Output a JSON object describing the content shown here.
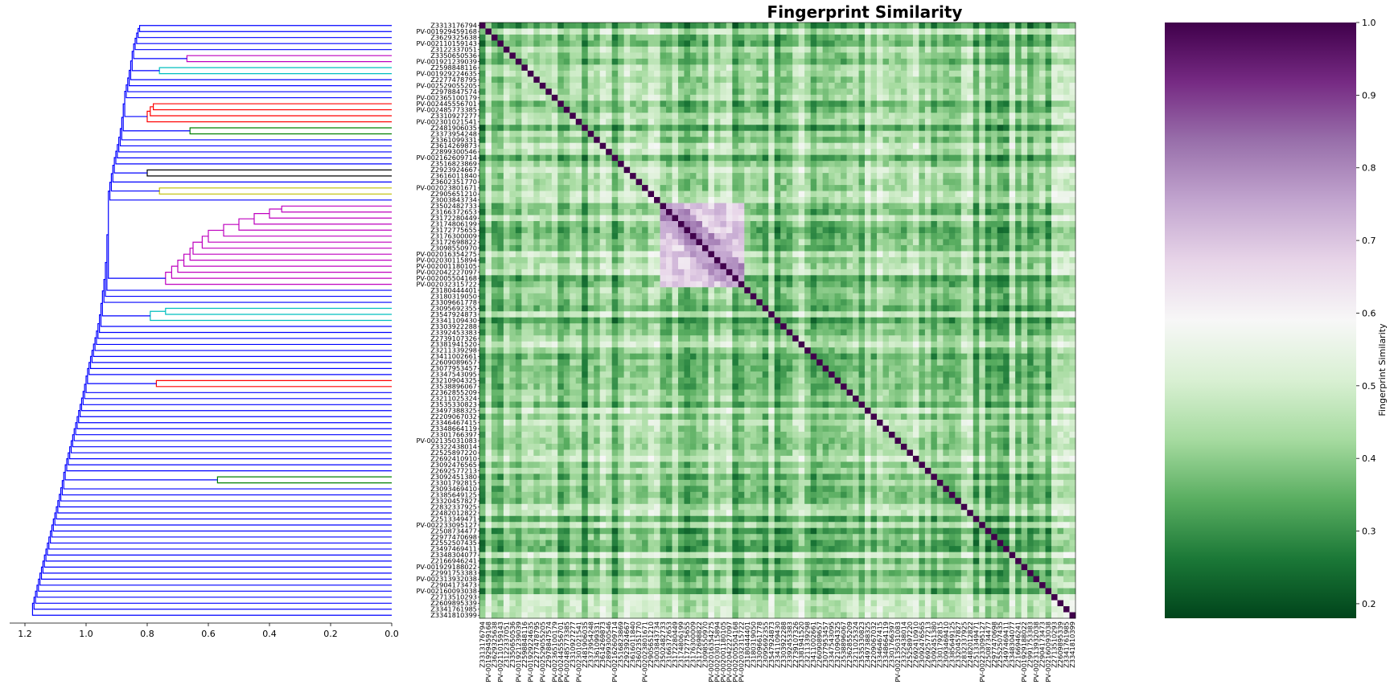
{
  "chart_data": [
    {
      "type": "dendrogram",
      "orientation": "left",
      "xlim": [
        1.25,
        0.0
      ],
      "xticks": [
        "1.2",
        "1.0",
        "0.8",
        "0.6",
        "0.4",
        "0.2",
        "0.0"
      ],
      "cluster_colors": {
        "magenta": "#bf00bf",
        "cyan": "#00bfbf",
        "red": "#ff0000",
        "green": "#008000",
        "black": "#000000",
        "yellow": "#bfbf00",
        "above_threshold": "#0000ff"
      }
    },
    {
      "type": "heatmap",
      "title": "Fingerprint Similarity",
      "labels": [
        "Z3313176794",
        "PV-001929459168",
        "Z3629325638",
        "PV-002110159143",
        "Z3122337051",
        "Z3350650536",
        "PV-001921239039",
        "Z2598848116",
        "PV-001929224635",
        "Z2277478795",
        "PV-002529055205",
        "Z2978847574",
        "PV-002365100179",
        "PV-002445556701",
        "PV-002485773385",
        "Z3310927277",
        "PV-002301021541",
        "Z2481906035",
        "Z3373954248",
        "Z3361099331",
        "Z3614269873",
        "Z2899300546",
        "PV-002162609714",
        "Z3516823869",
        "Z2923924667",
        "Z3616011840",
        "Z3602351770",
        "PV-002023801671",
        "Z2905651210",
        "Z3003843734",
        "Z3502482733",
        "Z3166372653",
        "Z3172280449",
        "Z3174806199",
        "Z3172775655",
        "Z3176300009",
        "Z3172698822",
        "Z3098550970",
        "PV-002016354275",
        "PV-002030115894",
        "PV-002001180105",
        "PV-002042227097",
        "PV-002005504168",
        "PV-002032315722",
        "Z3180444401",
        "Z3180319050",
        "Z3309661778",
        "Z3095692355",
        "Z3547924873",
        "Z3341109430",
        "Z3303922288",
        "Z3392453383",
        "Z2739107326",
        "Z3381941520",
        "Z3211339298",
        "Z3411002661",
        "Z2609089657",
        "Z3077953457",
        "Z3347543095",
        "Z3210904325",
        "Z3538896067",
        "Z2362855209",
        "Z3211025324",
        "Z3535330823",
        "Z3497388325",
        "Z2209067032",
        "Z3346467415",
        "Z3348664119",
        "Z3301766397",
        "PV-002135031083",
        "Z3322438014",
        "Z2525897220",
        "Z2692410910",
        "Z3092476565",
        "Z2692577213",
        "Z3092451380",
        "Z3301792815",
        "Z3093469410",
        "Z3385649125",
        "Z3320457827",
        "Z2832337925",
        "Z2482012822",
        "Z2513349471",
        "PV-002233095127",
        "Z2508734477",
        "Z2977470698",
        "Z2552507435",
        "Z3497469411",
        "Z3348304077",
        "Z2166946241",
        "PV-001929188022",
        "Z2991753383",
        "PV-002313932038",
        "Z2904173473",
        "PV-002160093038",
        "Z2713510293",
        "Z2609895339",
        "Z3341761985",
        "Z3341810399"
      ],
      "diagonal_value": 1.0,
      "vmin": 0.18,
      "vmax": 1.0,
      "colormap": "PRGn",
      "highlight_block_rows": [
        30,
        43
      ],
      "highlight_block_value": 0.62,
      "background_value": 0.4
    },
    {
      "type": "colorbar",
      "label": "Fingerprint Similarity",
      "ticks": [
        "1.0",
        "0.9",
        "0.8",
        "0.7",
        "0.6",
        "0.5",
        "0.4",
        "0.3",
        "0.2"
      ],
      "range": [
        0.18,
        1.0
      ]
    }
  ]
}
